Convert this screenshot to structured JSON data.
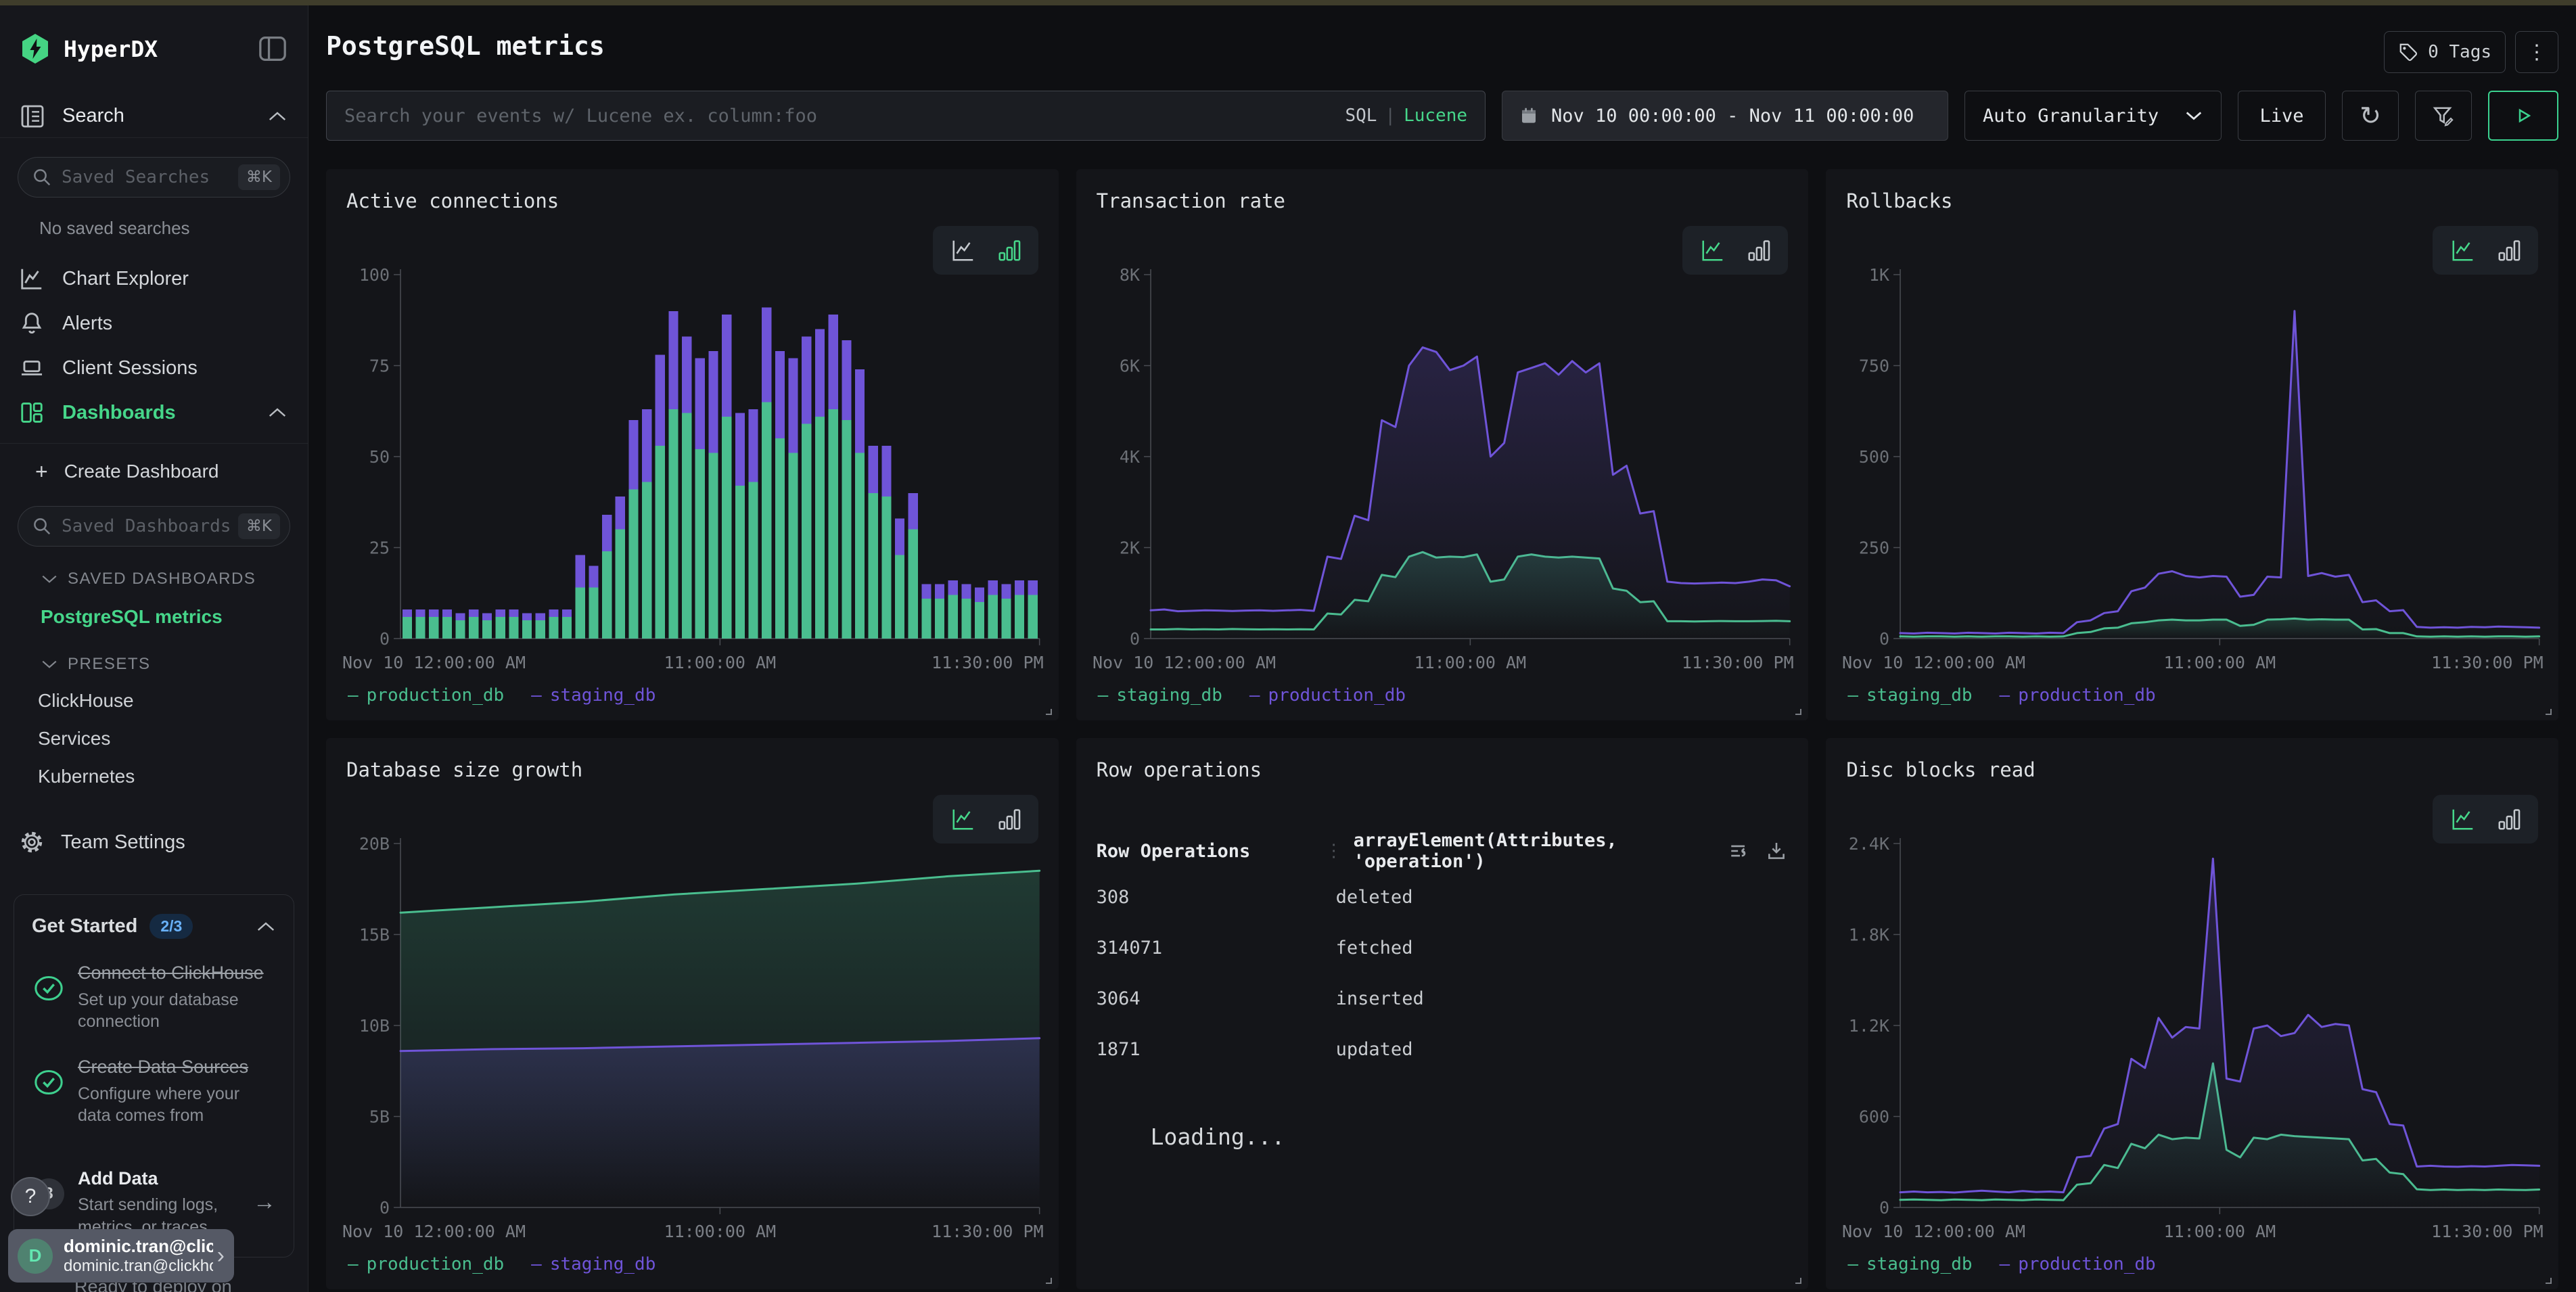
{
  "palette": {
    "green": "#4abe8f",
    "purple": "#6f54d8",
    "accent": "#46d68a",
    "badge_blue": "#69b1f8"
  },
  "icons": {
    "shortcut": "⌘K",
    "check": "✓",
    "arrow_right": "→",
    "kebab": "⋮",
    "chevron_right": "›",
    "help": "?",
    "legend_dash": "—",
    "refresh": "↻",
    "plus": "+"
  },
  "sidebar": {
    "logo": "HyperDX",
    "search_section": "Search",
    "saved_searches_placeholder": "Saved Searches",
    "no_saved_searches": "No saved searches",
    "nav": [
      {
        "label": "Chart Explorer"
      },
      {
        "label": "Alerts"
      },
      {
        "label": "Client Sessions"
      },
      {
        "label": "Dashboards"
      }
    ],
    "create_dashboard": "Create Dashboard",
    "saved_dashboards_placeholder": "Saved Dashboards",
    "saved_dashboards_caption": "SAVED DASHBOARDS",
    "saved_dashboards": [
      {
        "label": "PostgreSQL metrics"
      }
    ],
    "presets_caption": "PRESETS",
    "presets": [
      {
        "label": "ClickHouse"
      },
      {
        "label": "Services"
      },
      {
        "label": "Kubernetes"
      }
    ],
    "team_settings": "Team Settings",
    "get_started": {
      "title": "Get Started",
      "badge": "2/3",
      "steps": [
        {
          "title": "Connect to ClickHouse",
          "subtitle": "Set up your database connection",
          "done": true
        },
        {
          "title": "Create Data Sources",
          "subtitle": "Configure where your data comes from",
          "done": true
        },
        {
          "title": "Add Data",
          "subtitle": "Start sending logs, metrics, or traces",
          "done": false,
          "number": "3"
        }
      ],
      "partial_text": "Ready to deploy on"
    },
    "user": {
      "initial": "D",
      "name": "dominic.tran@clic...",
      "email": "dominic.tran@clickho..."
    }
  },
  "header": {
    "title": "PostgreSQL metrics",
    "tags": "0 Tags"
  },
  "toolbar": {
    "search_placeholder": "Search your events w/ Lucene ex. column:foo",
    "sql": "SQL",
    "divider": "|",
    "lucene": "Lucene",
    "date_range": "Nov 10 00:00:00 - Nov 11 00:00:00",
    "granularity": "Auto Granularity",
    "live": "Live"
  },
  "panels": [
    {
      "title": "Active connections",
      "chart_data": {
        "type": "bar",
        "stacked": true,
        "active_view": "bar",
        "ymax": 100,
        "yticks": [
          "0",
          "25",
          "50",
          "75",
          "100"
        ],
        "xticks": [
          "Nov 10 12:00:00 AM",
          "11:00:00 AM",
          "11:30:00 PM"
        ],
        "series": [
          {
            "name": "production_db",
            "color": "green",
            "values": [
              6,
              6,
              6,
              6,
              5,
              6,
              5,
              6,
              6,
              5,
              5,
              6,
              6,
              14,
              14,
              24,
              30,
              41,
              43,
              53,
              63,
              62,
              52,
              51,
              61,
              42,
              43,
              65,
              55,
              51,
              59,
              61,
              63,
              60,
              51,
              40,
              39,
              23,
              30,
              11,
              11,
              12,
              11,
              10,
              12,
              11,
              12,
              12
            ]
          },
          {
            "name": "staging_db",
            "color": "purple",
            "values": [
              2,
              2,
              2,
              2,
              2,
              2,
              2,
              2,
              2,
              2,
              2,
              2,
              2,
              9,
              6,
              10,
              9,
              19,
              20,
              25,
              27,
              21,
              25,
              28,
              28,
              20,
              20,
              26,
              24,
              26,
              24,
              24,
              26,
              22,
              23,
              13,
              14,
              10,
              10,
              4,
              4,
              4,
              4,
              4,
              4,
              4,
              4,
              4
            ]
          }
        ]
      }
    },
    {
      "title": "Transaction rate",
      "chart_data": {
        "type": "line",
        "active_view": "line",
        "ymax": 8000,
        "yticks": [
          "0",
          "2K",
          "4K",
          "6K",
          "8K"
        ],
        "xticks": [
          "Nov 10 12:00:00 AM",
          "11:00:00 AM",
          "11:30:00 PM"
        ],
        "series": [
          {
            "name": "staging_db",
            "color": "green",
            "values": [
              200,
              200,
              210,
              200,
              205,
              200,
              210,
              205,
              200,
              205,
              200,
              205,
              200,
              550,
              530,
              850,
              820,
              1400,
              1350,
              1800,
              1900,
              1780,
              1800,
              1790,
              1850,
              1250,
              1300,
              1800,
              1850,
              1800,
              1780,
              1800,
              1780,
              1760,
              1100,
              1050,
              800,
              820,
              380,
              380,
              375,
              380,
              385,
              380,
              380,
              385,
              390,
              380
            ]
          },
          {
            "name": "production_db",
            "color": "purple",
            "values": [
              620,
              640,
              600,
              610,
              620,
              615,
              605,
              615,
              620,
              610,
              620,
              630,
              610,
              1800,
              1750,
              2700,
              2600,
              4800,
              4650,
              6000,
              6400,
              6300,
              5900,
              6000,
              6200,
              4000,
              4300,
              5850,
              5950,
              6050,
              5800,
              6100,
              5850,
              6050,
              3600,
              3800,
              2750,
              2800,
              1250,
              1220,
              1210,
              1220,
              1230,
              1220,
              1250,
              1300,
              1280,
              1150
            ]
          }
        ]
      }
    },
    {
      "title": "Rollbacks",
      "chart_data": {
        "type": "line",
        "active_view": "line",
        "ymax": 1000,
        "yticks": [
          "0",
          "250",
          "500",
          "750",
          "1K"
        ],
        "xticks": [
          "Nov 10 12:00:00 AM",
          "11:00:00 AM",
          "11:30:00 PM"
        ],
        "series": [
          {
            "name": "staging_db",
            "color": "green",
            "values": [
              6,
              5,
              6,
              6,
              5,
              6,
              5,
              6,
              6,
              5,
              6,
              5,
              6,
              15,
              18,
              28,
              30,
              42,
              45,
              50,
              52,
              50,
              50,
              52,
              52,
              35,
              38,
              52,
              53,
              55,
              52,
              53,
              52,
              52,
              25,
              26,
              15,
              15,
              6,
              5,
              6,
              5,
              6,
              5,
              6,
              6,
              5,
              6
            ]
          },
          {
            "name": "production_db",
            "color": "purple",
            "values": [
              15,
              14,
              16,
              15,
              14,
              16,
              15,
              14,
              16,
              15,
              14,
              16,
              15,
              45,
              50,
              70,
              75,
              130,
              140,
              178,
              185,
              172,
              168,
              172,
              170,
              115,
              120,
              170,
              168,
              900,
              172,
              180,
              170,
              175,
              100,
              105,
              75,
              78,
              32,
              30,
              31,
              30,
              32,
              31,
              33,
              32,
              31,
              30
            ]
          }
        ]
      }
    },
    {
      "title": "Database size growth",
      "chart_data": {
        "type": "line",
        "active_view": "line",
        "ymax": 20,
        "yticks": [
          "0",
          "5B",
          "10B",
          "15B",
          "20B"
        ],
        "xticks": [
          "Nov 10 12:00:00 AM",
          "11:00:00 AM",
          "11:30:00 PM"
        ],
        "series": [
          {
            "name": "production_db",
            "color": "green",
            "values": [
              16.2,
              16.5,
              16.8,
              17.2,
              17.5,
              17.8,
              18.2,
              18.5
            ]
          },
          {
            "name": "staging_db",
            "color": "purple",
            "values": [
              8.6,
              8.7,
              8.75,
              8.85,
              8.95,
              9.05,
              9.15,
              9.3
            ]
          }
        ]
      }
    },
    {
      "title": "Row operations",
      "chart_data": {
        "type": "table",
        "columns": [
          "Row Operations",
          "arrayElement(Attributes, 'operation')"
        ],
        "rows": [
          [
            "308",
            "deleted"
          ],
          [
            "314071",
            "fetched"
          ],
          [
            "3064",
            "inserted"
          ],
          [
            "1871",
            "updated"
          ]
        ],
        "status": "Loading..."
      }
    },
    {
      "title": "Disc blocks read",
      "chart_data": {
        "type": "line",
        "active_view": "line",
        "ymax": 2400,
        "yticks": [
          "0",
          "600",
          "1.2K",
          "1.8K",
          "2.4K"
        ],
        "xticks": [
          "Nov 10 12:00:00 AM",
          "11:00:00 AM",
          "11:30:00 PM"
        ],
        "series": [
          {
            "name": "staging_db",
            "color": "green",
            "values": [
              50,
              52,
              50,
              48,
              52,
              50,
              48,
              52,
              50,
              48,
              52,
              50,
              48,
              150,
              160,
              280,
              260,
              420,
              390,
              480,
              450,
              460,
              455,
              950,
              380,
              330,
              460,
              450,
              480,
              470,
              465,
              460,
              455,
              450,
              310,
              320,
              230,
              220,
              120,
              115,
              118,
              115,
              117,
              115,
              118,
              116,
              115,
              118
            ]
          },
          {
            "name": "production_db",
            "color": "purple",
            "values": [
              100,
              105,
              100,
              102,
              98,
              105,
              110,
              105,
              100,
              108,
              102,
              105,
              100,
              330,
              340,
              520,
              550,
              980,
              920,
              1250,
              1120,
              1190,
              1180,
              2300,
              850,
              830,
              1180,
              1200,
              1130,
              1150,
              1270,
              1190,
              1210,
              1200,
              780,
              760,
              550,
              540,
              270,
              275,
              270,
              268,
              272,
              270,
              275,
              280,
              278,
              275
            ]
          }
        ]
      }
    }
  ]
}
